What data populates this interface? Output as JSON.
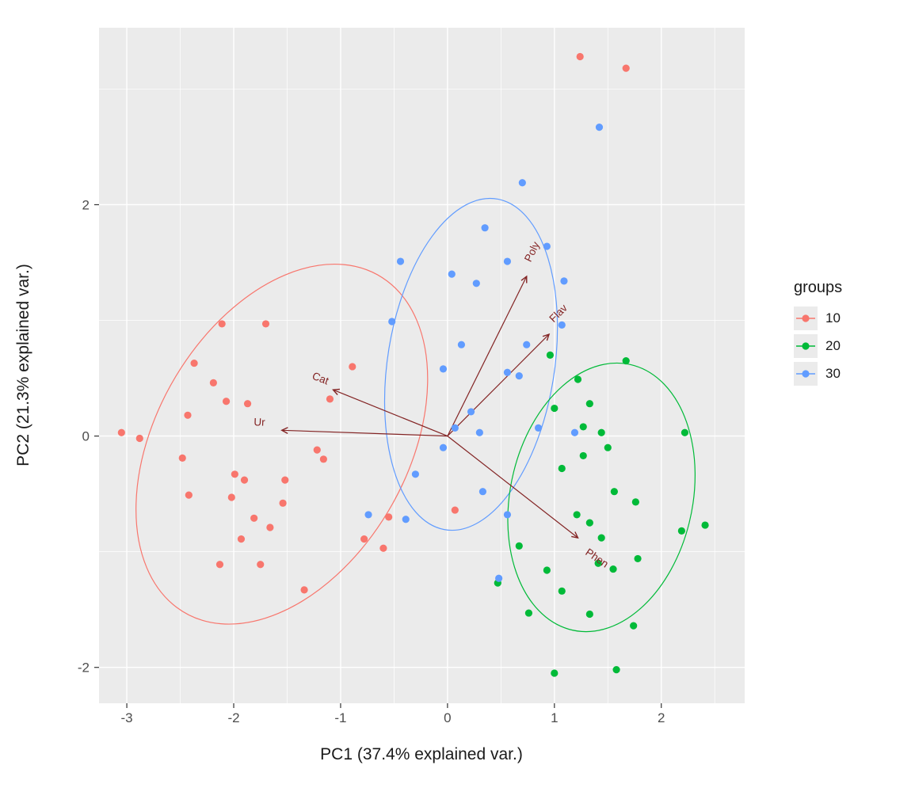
{
  "figure": {
    "background": "#ffffff",
    "panel_background": "#ebebeb",
    "grid_color": "#ffffff",
    "tick_label_color": "#4d4d4d",
    "tick_mark_color": "#333333"
  },
  "chart_data": {
    "type": "scatter",
    "title": "",
    "xlabel": "PC1 (37.4% explained var.)",
    "ylabel": "PC2 (21.3% explained var.)",
    "xlim": [
      -3.26,
      2.78
    ],
    "ylim": [
      -2.31,
      3.53
    ],
    "x_breaks": [
      -3,
      -2,
      -1,
      0,
      1,
      2
    ],
    "x_minor_breaks": [
      -2.5,
      -1.5,
      -0.5,
      0.5,
      1.5,
      2.5
    ],
    "y_breaks": [
      -2,
      0,
      2
    ],
    "y_minor_breaks": [
      -1,
      1,
      3
    ],
    "grid": true,
    "legend_title": "groups",
    "legend_position": "right",
    "point_radius": 4.6,
    "arrow_color": "#832424",
    "groups": [
      {
        "label": "10",
        "color": "#F8766D",
        "points": [
          [
            1.24,
            3.28
          ],
          [
            1.67,
            3.18
          ],
          [
            -2.11,
            0.97
          ],
          [
            -1.7,
            0.97
          ],
          [
            -2.37,
            0.63
          ],
          [
            -2.19,
            0.46
          ],
          [
            -2.07,
            0.3
          ],
          [
            -2.43,
            0.18
          ],
          [
            -1.87,
            0.28
          ],
          [
            -3.05,
            0.03
          ],
          [
            -2.88,
            -0.02
          ],
          [
            -0.89,
            0.6
          ],
          [
            -1.1,
            0.32
          ],
          [
            -2.48,
            -0.19
          ],
          [
            -1.99,
            -0.33
          ],
          [
            -1.9,
            -0.38
          ],
          [
            -1.22,
            -0.12
          ],
          [
            -1.16,
            -0.2
          ],
          [
            -1.52,
            -0.38
          ],
          [
            -2.42,
            -0.51
          ],
          [
            -2.02,
            -0.53
          ],
          [
            -1.54,
            -0.58
          ],
          [
            -1.81,
            -0.71
          ],
          [
            -1.66,
            -0.79
          ],
          [
            -1.93,
            -0.89
          ],
          [
            -0.78,
            -0.89
          ],
          [
            -0.6,
            -0.97
          ],
          [
            -2.13,
            -1.11
          ],
          [
            -1.75,
            -1.11
          ],
          [
            -1.34,
            -1.33
          ],
          [
            0.07,
            -0.64
          ],
          [
            -0.55,
            -0.7
          ]
        ]
      },
      {
        "label": "20",
        "color": "#00BA38",
        "points": [
          [
            0.96,
            0.7
          ],
          [
            1.67,
            0.65
          ],
          [
            1.22,
            0.49
          ],
          [
            1.33,
            0.28
          ],
          [
            1.0,
            0.24
          ],
          [
            1.27,
            0.08
          ],
          [
            1.44,
            0.03
          ],
          [
            2.22,
            0.03
          ],
          [
            1.5,
            -0.1
          ],
          [
            1.27,
            -0.17
          ],
          [
            1.07,
            -0.28
          ],
          [
            1.56,
            -0.48
          ],
          [
            1.76,
            -0.57
          ],
          [
            1.33,
            -0.75
          ],
          [
            1.21,
            -0.68
          ],
          [
            1.44,
            -0.88
          ],
          [
            2.19,
            -0.82
          ],
          [
            2.41,
            -0.77
          ],
          [
            0.67,
            -0.95
          ],
          [
            0.93,
            -1.16
          ],
          [
            1.41,
            -1.1
          ],
          [
            1.78,
            -1.06
          ],
          [
            0.47,
            -1.27
          ],
          [
            1.07,
            -1.34
          ],
          [
            0.76,
            -1.53
          ],
          [
            1.33,
            -1.54
          ],
          [
            1.74,
            -1.64
          ],
          [
            1.0,
            -2.05
          ],
          [
            1.58,
            -2.02
          ],
          [
            1.55,
            -1.15
          ]
        ]
      },
      {
        "label": "30",
        "color": "#619CFF",
        "points": [
          [
            1.42,
            2.67
          ],
          [
            0.7,
            2.19
          ],
          [
            0.35,
            1.8
          ],
          [
            0.93,
            1.64
          ],
          [
            0.04,
            1.4
          ],
          [
            0.27,
            1.32
          ],
          [
            0.56,
            1.51
          ],
          [
            -0.44,
            1.51
          ],
          [
            1.09,
            1.34
          ],
          [
            -0.52,
            0.99
          ],
          [
            0.13,
            0.79
          ],
          [
            0.74,
            0.79
          ],
          [
            1.07,
            0.96
          ],
          [
            -0.04,
            0.58
          ],
          [
            0.56,
            0.55
          ],
          [
            0.67,
            0.52
          ],
          [
            0.22,
            0.21
          ],
          [
            0.07,
            0.07
          ],
          [
            0.3,
            0.03
          ],
          [
            0.85,
            0.07
          ],
          [
            1.19,
            0.03
          ],
          [
            -0.04,
            -0.1
          ],
          [
            -0.3,
            -0.33
          ],
          [
            0.33,
            -0.48
          ],
          [
            0.56,
            -0.68
          ],
          [
            -0.74,
            -0.68
          ],
          [
            -0.39,
            -0.72
          ],
          [
            0.48,
            -1.23
          ]
        ]
      }
    ],
    "ellipses": [
      {
        "group": "10",
        "color": "#F8766D",
        "cx": -1.55,
        "cy": -0.07,
        "rx": 1.72,
        "ry": 1.15,
        "angle": 55
      },
      {
        "group": "30",
        "color": "#619CFF",
        "cx": 0.22,
        "cy": 0.62,
        "rx": 1.45,
        "ry": 0.78,
        "angle": 80
      },
      {
        "group": "20",
        "color": "#00BA38",
        "cx": 1.44,
        "cy": -0.53,
        "rx": 1.18,
        "ry": 0.85,
        "angle": 75
      }
    ],
    "loadings": [
      {
        "label": "Poly",
        "x": 0.74,
        "y": 1.38,
        "label_x": 0.82,
        "label_y": 1.58,
        "label_angle": -64
      },
      {
        "label": "Flav",
        "x": 0.95,
        "y": 0.88,
        "label_x": 1.06,
        "label_y": 1.04,
        "label_angle": -45
      },
      {
        "label": "Cat",
        "x": -1.07,
        "y": 0.4,
        "label_x": -1.2,
        "label_y": 0.47,
        "label_angle": 21
      },
      {
        "label": "Ur",
        "x": -1.55,
        "y": 0.05,
        "label_x": -1.76,
        "label_y": 0.09,
        "label_angle": 2
      },
      {
        "label": "Phen",
        "x": 1.22,
        "y": -0.88,
        "label_x": 1.38,
        "label_y": -1.08,
        "label_angle": 34
      }
    ]
  }
}
